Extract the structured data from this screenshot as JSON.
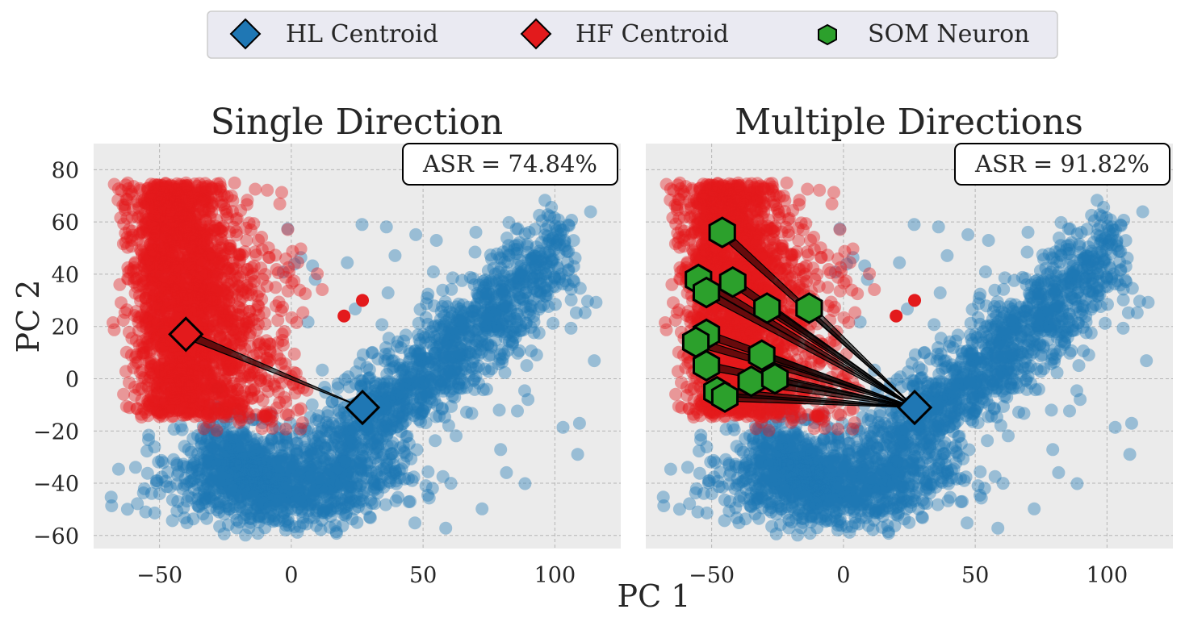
{
  "legend": {
    "items": [
      {
        "label": "HL Centroid",
        "marker": "diamond-icon",
        "color": "#1f77b4"
      },
      {
        "label": "HF Centroid",
        "marker": "diamond-icon",
        "color": "#e31a1c"
      },
      {
        "label": "SOM Neuron",
        "marker": "hexagon-icon",
        "color": "#2ca02c"
      }
    ]
  },
  "axes": {
    "xlabel": "PC 1",
    "ylabel": "PC 2"
  },
  "colors": {
    "hl": "#1f77b4",
    "hf": "#e31a1c",
    "som": "#2ca02c",
    "panel_bg": "#ebebeb"
  },
  "chart_data": [
    {
      "type": "scatter",
      "title": "Single Direction",
      "annotation": "ASR = 74.84%",
      "xlim": [
        -75,
        125
      ],
      "ylim": [
        -65,
        90
      ],
      "xticks": [
        {
          "v": -50,
          "label": "−50"
        },
        {
          "v": 0,
          "label": "0"
        },
        {
          "v": 50,
          "label": "50"
        },
        {
          "v": 100,
          "label": "100"
        }
      ],
      "yticks": [
        {
          "v": -60,
          "label": "−60"
        },
        {
          "v": -40,
          "label": "−40"
        },
        {
          "v": -20,
          "label": "−20"
        },
        {
          "v": 0,
          "label": "0"
        },
        {
          "v": 20,
          "label": "20"
        },
        {
          "v": 40,
          "label": "40"
        },
        {
          "v": 60,
          "label": "60"
        },
        {
          "v": 80,
          "label": "80"
        }
      ],
      "hl_centroid": [
        27,
        -11
      ],
      "hf_centroid": [
        -40,
        17
      ],
      "som_neurons": [],
      "hf_outliers": [
        [
          20,
          24
        ],
        [
          27,
          30
        ]
      ]
    },
    {
      "type": "scatter",
      "title": "Multiple Directions",
      "annotation": "ASR = 91.82%",
      "xlim": [
        -75,
        125
      ],
      "ylim": [
        -65,
        90
      ],
      "xticks": [
        {
          "v": -50,
          "label": "−50"
        },
        {
          "v": 0,
          "label": "0"
        },
        {
          "v": 50,
          "label": "50"
        },
        {
          "v": 100,
          "label": "100"
        }
      ],
      "yticks": [],
      "hl_centroid": [
        27,
        -11
      ],
      "hf_centroid": null,
      "som_neurons": [
        [
          -46,
          56
        ],
        [
          -55,
          38
        ],
        [
          -52,
          33
        ],
        [
          -42,
          37
        ],
        [
          -29,
          27
        ],
        [
          -13,
          27
        ],
        [
          -52,
          17
        ],
        [
          -56,
          14
        ],
        [
          -52,
          5
        ],
        [
          -31,
          9
        ],
        [
          -35,
          -1
        ],
        [
          -26,
          0
        ],
        [
          -48,
          -5
        ],
        [
          -45,
          -7
        ]
      ],
      "hf_outliers": [
        [
          20,
          24
        ],
        [
          27,
          30
        ]
      ]
    }
  ]
}
